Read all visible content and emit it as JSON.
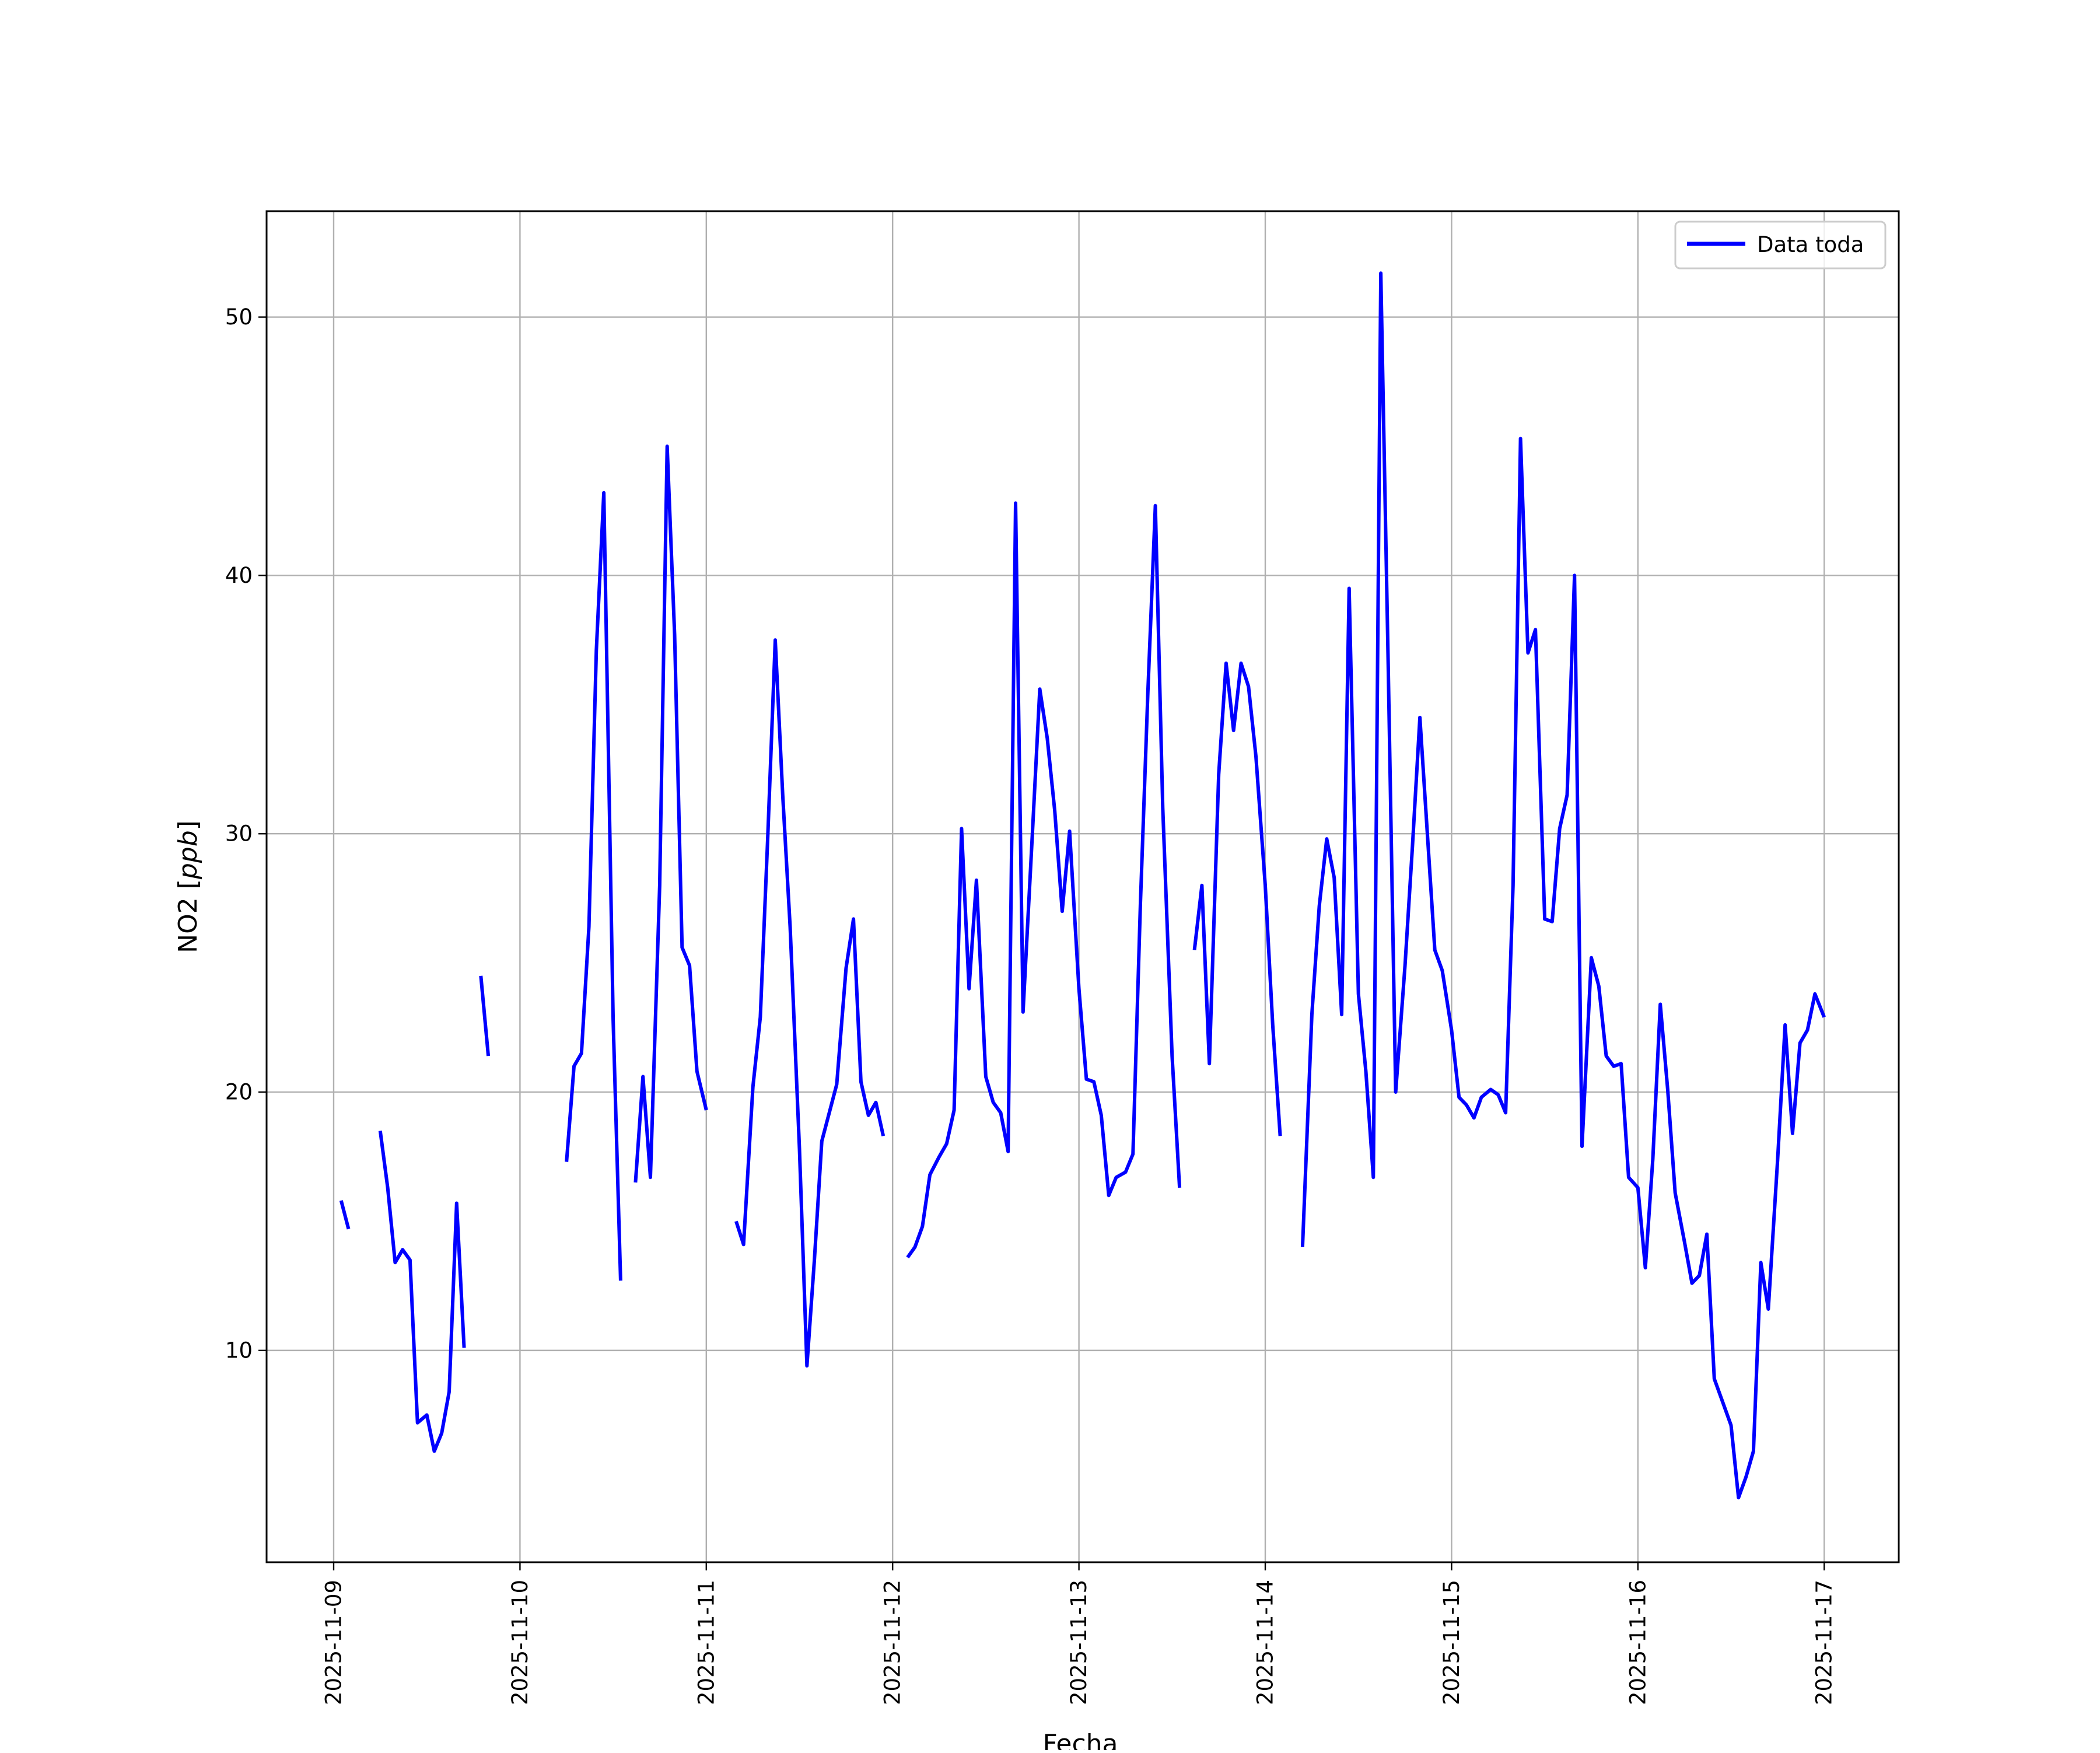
{
  "chart_data": {
    "type": "line",
    "title": "",
    "xlabel": "Fecha",
    "ylabel_main": "NO2 [",
    "ylabel_unit": "ppb",
    "ylabel_close": "]",
    "x_tick_labels": [
      "2025-11-09",
      "2025-11-10",
      "2025-11-11",
      "2025-11-12",
      "2025-11-13",
      "2025-11-14",
      "2025-11-15",
      "2025-11-16",
      "2025-11-17"
    ],
    "y_ticks": [
      10,
      20,
      30,
      40,
      50
    ],
    "ylim": [
      1.8,
      54.1
    ],
    "xlim": [
      -0.36,
      8.4
    ],
    "grid": true,
    "legend_position": "top-right",
    "series": [
      {
        "name": "Data toda",
        "color": "#0000ff",
        "x_unit": "days since 2025-11-09",
        "segments": [
          [
            [
              0.04,
              15.8
            ],
            [
              0.08,
              14.7
            ]
          ],
          [
            [
              0.25,
              18.5
            ],
            [
              0.29,
              16.3
            ],
            [
              0.33,
              13.4
            ],
            [
              0.37,
              13.9
            ],
            [
              0.41,
              13.5
            ],
            [
              0.45,
              7.2
            ],
            [
              0.5,
              7.5
            ],
            [
              0.54,
              6.1
            ],
            [
              0.58,
              6.8
            ],
            [
              0.62,
              8.4
            ],
            [
              0.66,
              15.7
            ],
            [
              0.7,
              10.1
            ]
          ],
          [
            [
              0.79,
              24.5
            ],
            [
              0.83,
              21.4
            ]
          ],
          [
            [
              1.25,
              17.3
            ],
            [
              1.29,
              21.0
            ],
            [
              1.33,
              21.5
            ],
            [
              1.37,
              26.4
            ],
            [
              1.41,
              37.1
            ],
            [
              1.45,
              43.2
            ],
            [
              1.5,
              22.8
            ],
            [
              1.54,
              12.7
            ]
          ],
          [
            [
              1.62,
              16.5
            ],
            [
              1.66,
              20.6
            ],
            [
              1.7,
              16.7
            ],
            [
              1.75,
              28.0
            ],
            [
              1.79,
              45.0
            ],
            [
              1.83,
              37.7
            ],
            [
              1.87,
              25.6
            ],
            [
              1.91,
              24.9
            ],
            [
              1.95,
              20.8
            ],
            [
              2.0,
              19.3
            ]
          ],
          [
            [
              2.16,
              15.0
            ],
            [
              2.2,
              14.1
            ],
            [
              2.25,
              20.2
            ],
            [
              2.29,
              22.9
            ],
            [
              2.33,
              29.9
            ],
            [
              2.37,
              37.5
            ],
            [
              2.41,
              31.5
            ],
            [
              2.45,
              26.4
            ],
            [
              2.5,
              17.8
            ],
            [
              2.54,
              9.4
            ],
            [
              2.58,
              13.5
            ],
            [
              2.62,
              18.1
            ],
            [
              2.66,
              19.2
            ],
            [
              2.7,
              20.3
            ],
            [
              2.75,
              24.8
            ],
            [
              2.79,
              26.7
            ],
            [
              2.83,
              20.4
            ],
            [
              2.87,
              19.1
            ],
            [
              2.91,
              19.6
            ],
            [
              2.95,
              18.3
            ]
          ],
          [
            [
              3.08,
              13.6
            ],
            [
              3.12,
              14.0
            ],
            [
              3.16,
              14.8
            ],
            [
              3.2,
              16.8
            ],
            [
              3.25,
              17.5
            ],
            [
              3.29,
              18.0
            ],
            [
              3.33,
              19.3
            ],
            [
              3.37,
              30.2
            ],
            [
              3.41,
              24.0
            ],
            [
              3.45,
              28.2
            ],
            [
              3.5,
              20.6
            ],
            [
              3.54,
              19.6
            ],
            [
              3.58,
              19.2
            ],
            [
              3.62,
              17.7
            ],
            [
              3.66,
              42.8
            ],
            [
              3.7,
              23.1
            ],
            [
              3.75,
              30.0
            ],
            [
              3.79,
              35.6
            ],
            [
              3.83,
              33.7
            ],
            [
              3.87,
              30.9
            ],
            [
              3.91,
              27.0
            ],
            [
              3.95,
              30.1
            ],
            [
              4.0,
              24.0
            ],
            [
              4.04,
              20.5
            ],
            [
              4.08,
              20.4
            ],
            [
              4.12,
              19.1
            ],
            [
              4.16,
              16.0
            ],
            [
              4.2,
              16.7
            ],
            [
              4.25,
              16.9
            ],
            [
              4.29,
              17.6
            ],
            [
              4.33,
              27.3
            ],
            [
              4.37,
              35.5
            ],
            [
              4.41,
              42.7
            ],
            [
              4.45,
              31.0
            ],
            [
              4.5,
              21.4
            ],
            [
              4.54,
              16.3
            ]
          ],
          [
            [
              4.62,
              25.5
            ],
            [
              4.66,
              28.0
            ],
            [
              4.7,
              21.1
            ],
            [
              4.75,
              32.3
            ],
            [
              4.79,
              36.6
            ],
            [
              4.83,
              34.0
            ],
            [
              4.87,
              36.6
            ],
            [
              4.91,
              35.7
            ],
            [
              4.95,
              33.0
            ],
            [
              5.0,
              28.0
            ],
            [
              5.04,
              22.6
            ],
            [
              5.08,
              18.3
            ]
          ],
          [
            [
              5.2,
              14.0
            ],
            [
              5.25,
              23.0
            ],
            [
              5.29,
              27.2
            ],
            [
              5.33,
              29.8
            ],
            [
              5.37,
              28.3
            ],
            [
              5.41,
              23.0
            ],
            [
              5.45,
              39.5
            ],
            [
              5.5,
              23.8
            ],
            [
              5.54,
              20.8
            ],
            [
              5.58,
              16.7
            ],
            [
              5.62,
              51.7
            ],
            [
              5.66,
              36.5
            ],
            [
              5.7,
              20.0
            ],
            [
              5.75,
              24.9
            ],
            [
              5.79,
              29.5
            ],
            [
              5.83,
              34.5
            ],
            [
              5.87,
              30.0
            ],
            [
              5.91,
              25.5
            ],
            [
              5.95,
              24.7
            ],
            [
              6.0,
              22.4
            ],
            [
              6.04,
              19.8
            ],
            [
              6.08,
              19.5
            ],
            [
              6.12,
              19.0
            ],
            [
              6.16,
              19.8
            ],
            [
              6.21,
              20.1
            ],
            [
              6.25,
              19.9
            ],
            [
              6.29,
              19.2
            ],
            [
              6.33,
              28.0
            ],
            [
              6.37,
              45.3
            ],
            [
              6.41,
              37.0
            ],
            [
              6.45,
              37.9
            ],
            [
              6.5,
              26.7
            ],
            [
              6.54,
              26.6
            ],
            [
              6.58,
              30.2
            ],
            [
              6.62,
              31.5
            ],
            [
              6.66,
              40.0
            ],
            [
              6.7,
              17.9
            ],
            [
              6.75,
              25.2
            ],
            [
              6.79,
              24.1
            ],
            [
              6.83,
              21.4
            ],
            [
              6.87,
              21.0
            ],
            [
              6.91,
              21.1
            ],
            [
              6.95,
              16.7
            ],
            [
              7.0,
              16.3
            ],
            [
              7.04,
              13.2
            ],
            [
              7.08,
              17.4
            ],
            [
              7.12,
              23.4
            ],
            [
              7.16,
              20.1
            ],
            [
              7.2,
              16.1
            ],
            [
              7.25,
              14.2
            ],
            [
              7.29,
              12.6
            ],
            [
              7.33,
              12.9
            ],
            [
              7.37,
              14.5
            ],
            [
              7.41,
              8.9
            ],
            [
              7.46,
              7.9
            ],
            [
              7.5,
              7.1
            ],
            [
              7.54,
              4.3
            ],
            [
              7.58,
              5.1
            ],
            [
              7.62,
              6.1
            ],
            [
              7.66,
              13.4
            ],
            [
              7.7,
              11.6
            ],
            [
              7.75,
              17.4
            ],
            [
              7.79,
              22.6
            ],
            [
              7.83,
              18.4
            ],
            [
              7.87,
              21.9
            ],
            [
              7.91,
              22.4
            ],
            [
              7.95,
              23.8
            ],
            [
              8.0,
              22.9
            ]
          ]
        ]
      }
    ]
  }
}
